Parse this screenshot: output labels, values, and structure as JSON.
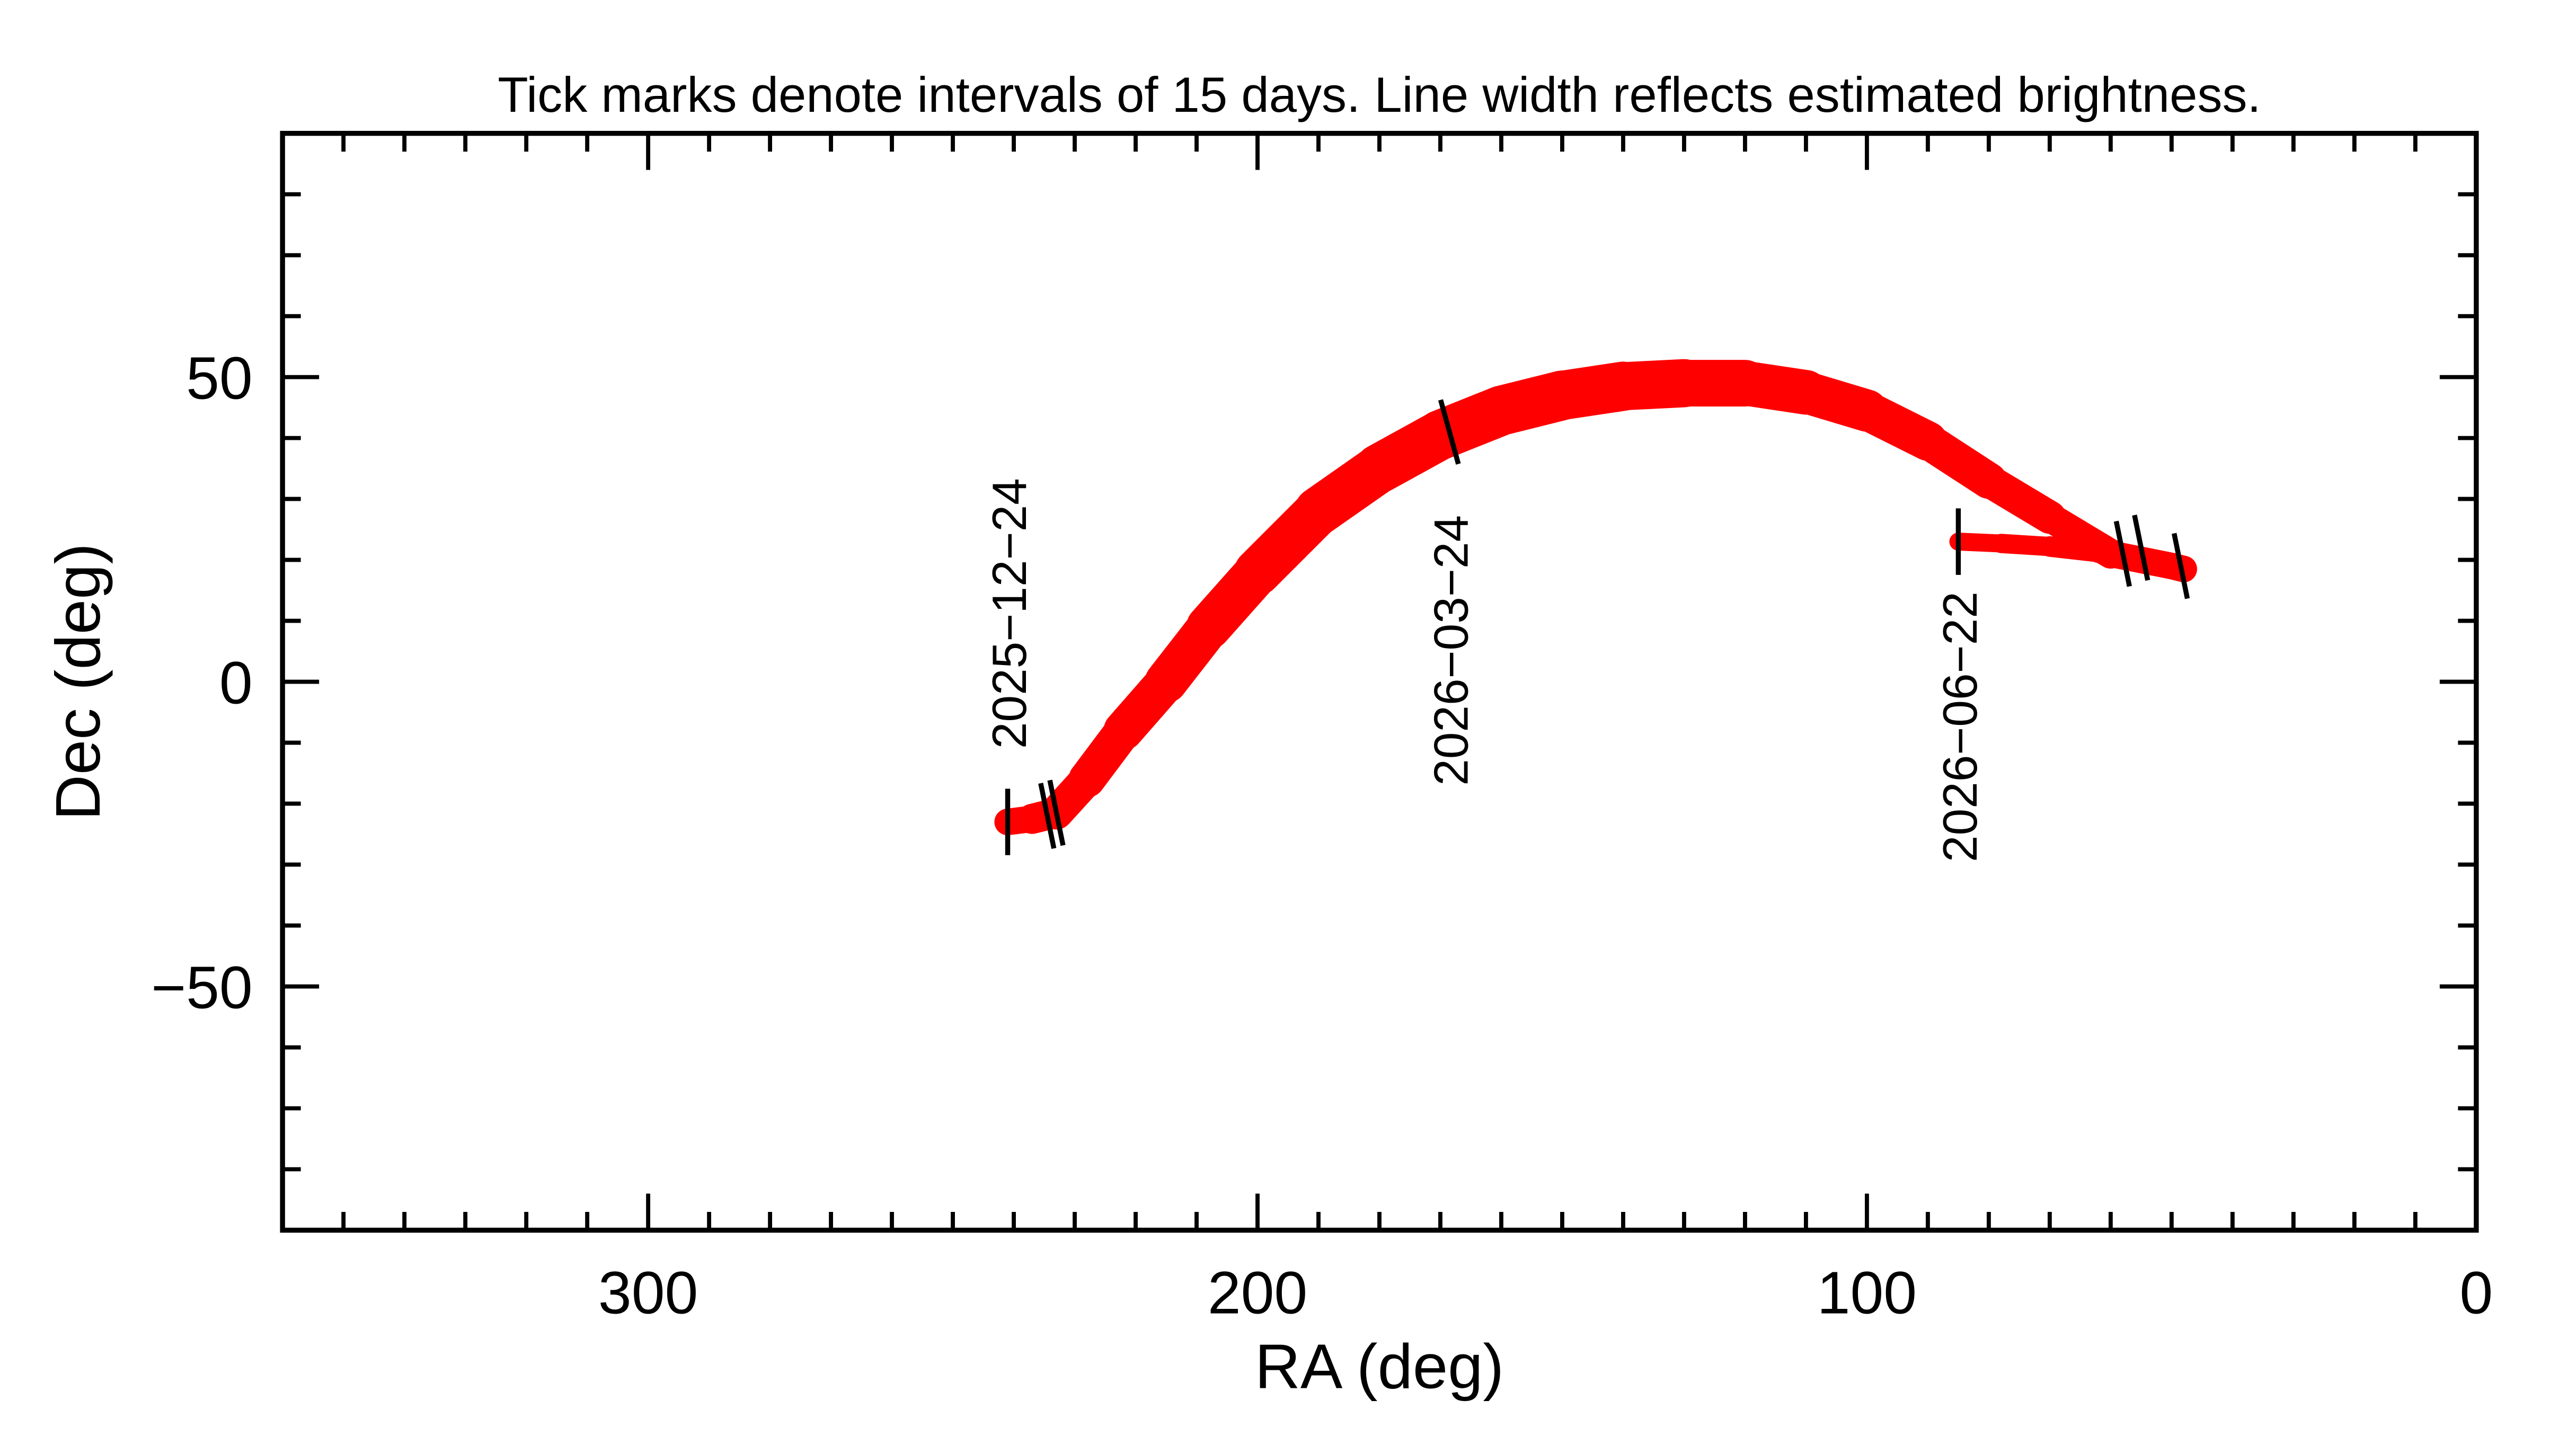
{
  "chart_data": {
    "type": "line",
    "title": "Tick marks denote intervals of 15 days.  Line width reflects estimated brightness.",
    "xlabel": "RA (deg)",
    "ylabel": "Dec (deg)",
    "xlim": [
      360,
      0
    ],
    "ylim": [
      -90,
      90
    ],
    "x_ticks": [
      300,
      200,
      100,
      0
    ],
    "x_tick_labels": [
      "300",
      "200",
      "100",
      "0"
    ],
    "y_ticks": [
      -50,
      0,
      50
    ],
    "y_tick_labels": [
      "−50",
      "0",
      "50"
    ],
    "grid": false,
    "line_color": "#ff0000",
    "series": [
      {
        "ra": [
          241,
          237,
          233,
          228,
          222,
          215,
          208,
          200,
          190,
          180,
          170,
          160,
          150,
          140,
          130,
          120,
          110,
          100,
          90,
          80,
          70,
          60,
          55,
          50,
          48
        ],
        "dec": [
          -23,
          -22.5,
          -21.5,
          -16,
          -8,
          0,
          9,
          18,
          28,
          35,
          40.5,
          44.5,
          47,
          48.5,
          49,
          49,
          47.5,
          44.5,
          39.5,
          33,
          27,
          21,
          20,
          19,
          18.5
        ]
      },
      {
        "ra": [
          48,
          55,
          62,
          70,
          78,
          85
        ],
        "dec": [
          18.5,
          20,
          21.3,
          22.2,
          22.7,
          23
        ]
      }
    ],
    "date_ticks": [
      {
        "ra": 241,
        "dec": -23,
        "label": "2025−12−24"
      },
      {
        "ra": 234.5,
        "dec": -22,
        "label": ""
      },
      {
        "ra": 233,
        "dec": -21.5,
        "label": ""
      },
      {
        "ra": 168.5,
        "dec": 41,
        "label": "2026−03−24"
      },
      {
        "ra": 58,
        "dec": 21,
        "label": ""
      },
      {
        "ra": 55,
        "dec": 22,
        "label": ""
      },
      {
        "ra": 48.5,
        "dec": 19,
        "label": ""
      },
      {
        "ra": 85,
        "dec": 23,
        "label": "2026−06−22"
      }
    ]
  }
}
